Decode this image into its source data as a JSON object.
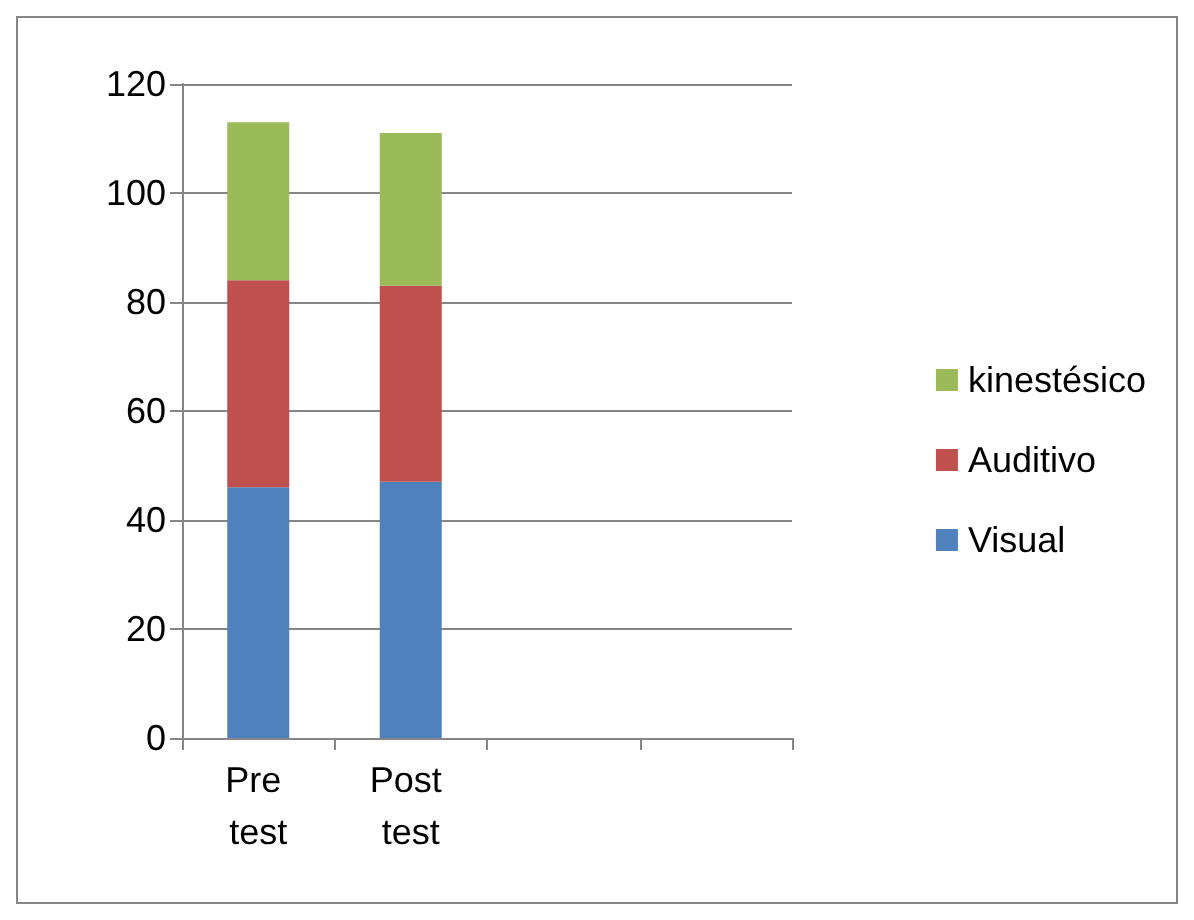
{
  "chart_data": {
    "type": "bar",
    "stacked": true,
    "categories": [
      "Pre test",
      "Post test",
      null,
      null
    ],
    "series": [
      {
        "name": "Visual",
        "color": "#4f81bd",
        "values": [
          46,
          47,
          null,
          null
        ]
      },
      {
        "name": "Auditivo",
        "color": "#c0504d",
        "values": [
          38,
          36,
          null,
          null
        ]
      },
      {
        "name": "kinestésico",
        "color": "#9bbb59",
        "values": [
          29,
          28,
          null,
          null
        ]
      }
    ],
    "ylim": [
      0,
      120
    ],
    "yticks": [
      0,
      20,
      40,
      60,
      80,
      100,
      120
    ],
    "grid": "y",
    "legend": "right"
  }
}
